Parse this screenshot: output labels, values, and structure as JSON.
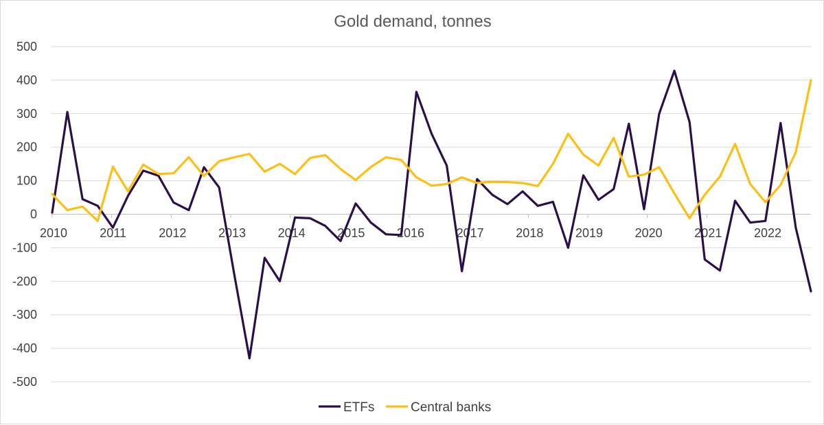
{
  "chart_data": {
    "type": "line",
    "title": "Gold demand, tonnes",
    "xlabel": "",
    "ylabel": "",
    "ylim": [
      -500,
      500
    ],
    "yticks": [
      500,
      400,
      300,
      200,
      100,
      0,
      -100,
      -200,
      -300,
      -400,
      -500
    ],
    "xlim": [
      2010,
      2022.75
    ],
    "xticks": [
      "2010",
      "2011",
      "2012",
      "2013",
      "2014",
      "2015",
      "2016",
      "2017",
      "2018",
      "2019",
      "2020",
      "2021",
      "2022"
    ],
    "legend": "bottom-center",
    "grid": true,
    "series": [
      {
        "name": "ETFs",
        "color": "#2a0f4a",
        "values": [
          5,
          305,
          45,
          25,
          -40,
          55,
          130,
          115,
          35,
          12,
          140,
          80,
          -180,
          -430,
          -130,
          -200,
          -10,
          -12,
          -35,
          -80,
          32,
          -25,
          -60,
          -62,
          365,
          240,
          145,
          -170,
          105,
          58,
          30,
          68,
          25,
          37,
          -100,
          116,
          43,
          75,
          270,
          15,
          300,
          428,
          275,
          -135,
          -168,
          40,
          -25,
          -20,
          272,
          -40,
          -230
        ]
      },
      {
        "name": "Central banks",
        "color": "#fdbf12",
        "values": [
          60,
          12,
          23,
          -20,
          142,
          68,
          148,
          120,
          122,
          170,
          114,
          158,
          170,
          180,
          127,
          150,
          120,
          168,
          176,
          135,
          102,
          141,
          170,
          162,
          110,
          85,
          90,
          110,
          93,
          97,
          96,
          93,
          84,
          150,
          240,
          178,
          145,
          228,
          112,
          118,
          140,
          62,
          -12,
          58,
          112,
          210,
          90,
          36,
          87,
          185,
          400
        ]
      }
    ]
  }
}
